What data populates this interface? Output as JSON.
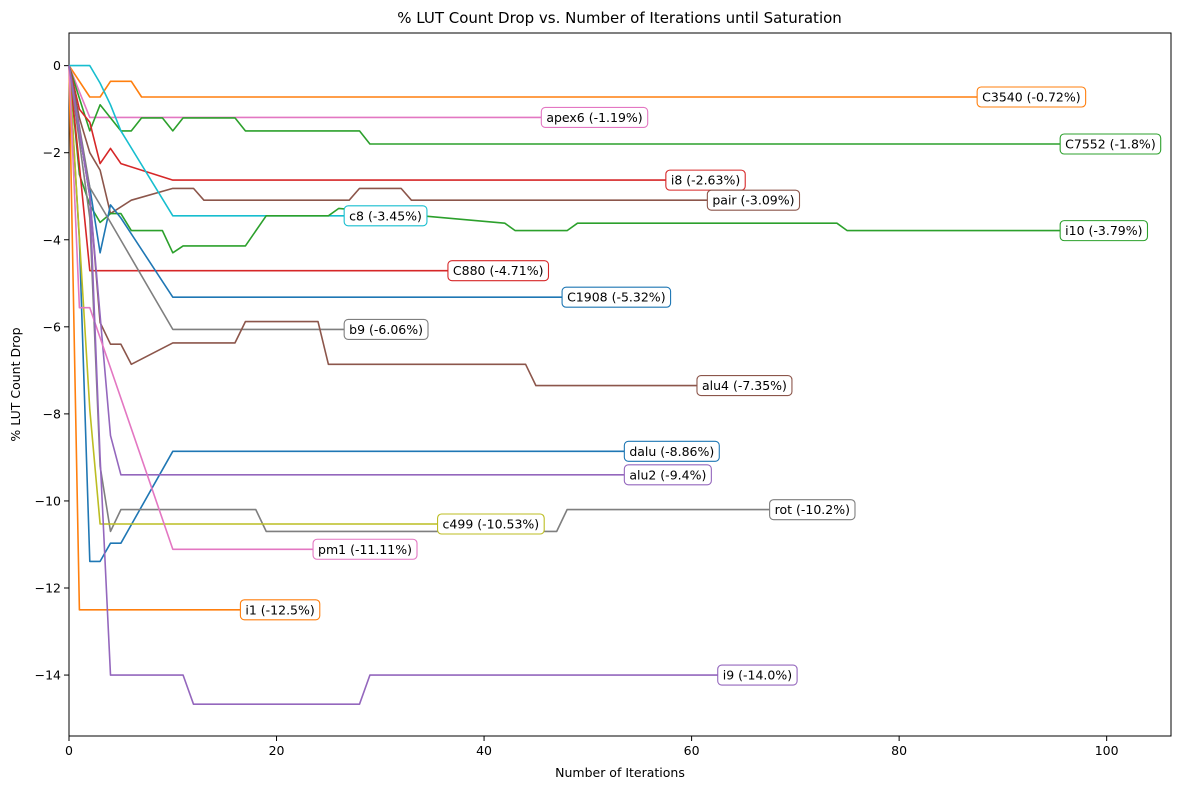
{
  "chart_data": {
    "type": "line",
    "title": "% LUT Count Drop vs. Number of Iterations until Saturation",
    "xlabel": "Number of Iterations",
    "ylabel": "% LUT Count Drop",
    "xlim": [
      0,
      106.2
    ],
    "ylim": [
      -15.4,
      0.75
    ],
    "xticks": [
      0,
      20,
      40,
      60,
      80,
      100
    ],
    "yticks": [
      0,
      -2,
      -4,
      -6,
      -8,
      -10,
      -12,
      -14
    ],
    "grid": false,
    "legend": "none",
    "series": [
      {
        "name": "i1",
        "label": "i1 (-12.5%)",
        "color": "#ff7f0e",
        "x": [
          0,
          1,
          17
        ],
        "y": [
          0,
          -12.5,
          -12.5
        ]
      },
      {
        "name": "C3540",
        "label": "C3540 (-0.72%)",
        "color": "#ff7f0e",
        "x": [
          0,
          2,
          3,
          4,
          6,
          7,
          88
        ],
        "y": [
          0,
          -0.72,
          -0.72,
          -0.36,
          -0.36,
          -0.72,
          -0.72
        ]
      },
      {
        "name": "apex6",
        "label": "apex6 (-1.19%)",
        "color": "#e377c2",
        "x": [
          0,
          1,
          2,
          46
        ],
        "y": [
          0,
          -0.6,
          -1.19,
          -1.19
        ]
      },
      {
        "name": "C7552",
        "label": "C7552 (-1.8%)",
        "color": "#2ca02c",
        "x": [
          0,
          2,
          3,
          5,
          6,
          7,
          9,
          10,
          11,
          16,
          17,
          28,
          29,
          96
        ],
        "y": [
          0,
          -1.5,
          -0.9,
          -1.5,
          -1.5,
          -1.2,
          -1.2,
          -1.5,
          -1.2,
          -1.2,
          -1.5,
          -1.5,
          -1.8,
          -1.8
        ]
      },
      {
        "name": "i8",
        "label": "i8 (-2.63%)",
        "color": "#d62728",
        "x": [
          0,
          1,
          2,
          3,
          4,
          5,
          10,
          58
        ],
        "y": [
          0,
          -1.0,
          -1.3,
          -2.25,
          -1.9,
          -2.25,
          -2.63,
          -2.63
        ]
      },
      {
        "name": "pair",
        "label": "pair (-3.09%)",
        "color": "#8c564b",
        "x": [
          0,
          1,
          2,
          3,
          4,
          6,
          10,
          12,
          13,
          27,
          28,
          32,
          33,
          62
        ],
        "y": [
          0,
          -1.2,
          -2.0,
          -2.4,
          -3.4,
          -3.09,
          -2.82,
          -2.82,
          -3.09,
          -3.09,
          -2.82,
          -2.82,
          -3.09,
          -3.09
        ]
      },
      {
        "name": "c8",
        "label": "c8 (-3.45%)",
        "color": "#17becf",
        "x": [
          0,
          2,
          3,
          4,
          5,
          10,
          27
        ],
        "y": [
          0,
          0,
          -0.4,
          -0.9,
          -1.5,
          -3.45,
          -3.45
        ]
      },
      {
        "name": "i10",
        "label": "i10 (-3.79%)",
        "color": "#2ca02c",
        "x": [
          0,
          1,
          2,
          3,
          4,
          5,
          6,
          9,
          10,
          11,
          17,
          19,
          25,
          26,
          42,
          43,
          48,
          49,
          74,
          75,
          96
        ],
        "y": [
          0,
          -2.5,
          -3.2,
          -3.6,
          -3.4,
          -3.4,
          -3.79,
          -3.79,
          -4.3,
          -4.14,
          -4.14,
          -3.45,
          -3.45,
          -3.28,
          -3.62,
          -3.79,
          -3.79,
          -3.62,
          -3.62,
          -3.79,
          -3.79
        ]
      },
      {
        "name": "C880",
        "label": "C880 (-4.71%)",
        "color": "#d62728",
        "x": [
          0,
          1,
          2,
          37
        ],
        "y": [
          0,
          -2.3,
          -4.71,
          -4.71
        ]
      },
      {
        "name": "C1908",
        "label": "C1908 (-5.32%)",
        "color": "#1f77b4",
        "x": [
          0,
          1,
          2,
          3,
          4,
          5,
          10,
          48
        ],
        "y": [
          0,
          -1.6,
          -2.8,
          -4.3,
          -3.2,
          -3.5,
          -5.32,
          -5.32
        ]
      },
      {
        "name": "b9",
        "label": "b9 (-6.06%)",
        "color": "#7f7f7f",
        "x": [
          0,
          2,
          4,
          10,
          27
        ],
        "y": [
          0,
          -2.8,
          -3.6,
          -6.06,
          -6.06
        ]
      },
      {
        "name": "alu4",
        "label": "alu4 (-7.35%)",
        "color": "#8c564b",
        "x": [
          0,
          1,
          2,
          3,
          4,
          5,
          6,
          10,
          16,
          17,
          24,
          25,
          44,
          45,
          61
        ],
        "y": [
          0,
          -1.5,
          -3.0,
          -5.9,
          -6.4,
          -6.4,
          -6.86,
          -6.37,
          -6.37,
          -5.88,
          -5.88,
          -6.86,
          -6.86,
          -7.35,
          -7.35
        ]
      },
      {
        "name": "dalu",
        "label": "dalu (-8.86%)",
        "color": "#1f77b4",
        "x": [
          0,
          1,
          2,
          3,
          4,
          5,
          10,
          54
        ],
        "y": [
          0,
          -4.0,
          -11.39,
          -11.39,
          -10.97,
          -10.97,
          -8.86,
          -8.86
        ]
      },
      {
        "name": "alu2",
        "label": "alu2 (-9.4%)",
        "color": "#9467bd",
        "x": [
          0,
          2,
          4,
          5,
          54
        ],
        "y": [
          0,
          -3.0,
          -8.5,
          -9.4,
          -9.4
        ]
      },
      {
        "name": "rot",
        "label": "rot (-10.2%)",
        "color": "#7f7f7f",
        "x": [
          0,
          2,
          3,
          4,
          5,
          18,
          19,
          47,
          48,
          68
        ],
        "y": [
          0,
          -3.5,
          -9.2,
          -10.7,
          -10.2,
          -10.2,
          -10.7,
          -10.7,
          -10.2,
          -10.2
        ]
      },
      {
        "name": "c499",
        "label": "c499 (-10.53%)",
        "color": "#bcbd22",
        "x": [
          0,
          2,
          3,
          36
        ],
        "y": [
          0,
          -7.9,
          -10.53,
          -10.53
        ]
      },
      {
        "name": "pm1",
        "label": "pm1 (-11.11%)",
        "color": "#e377c2",
        "x": [
          0,
          1,
          2,
          10,
          24
        ],
        "y": [
          0,
          -5.56,
          -5.56,
          -11.11,
          -11.11
        ]
      },
      {
        "name": "i9",
        "label": "i9 (-14.0%)",
        "color": "#9467bd",
        "x": [
          0,
          2,
          3,
          4,
          11,
          12,
          28,
          29,
          63
        ],
        "y": [
          0,
          -3.0,
          -9.0,
          -14.0,
          -14.0,
          -14.67,
          -14.67,
          -14.0,
          -14.0
        ]
      }
    ]
  }
}
